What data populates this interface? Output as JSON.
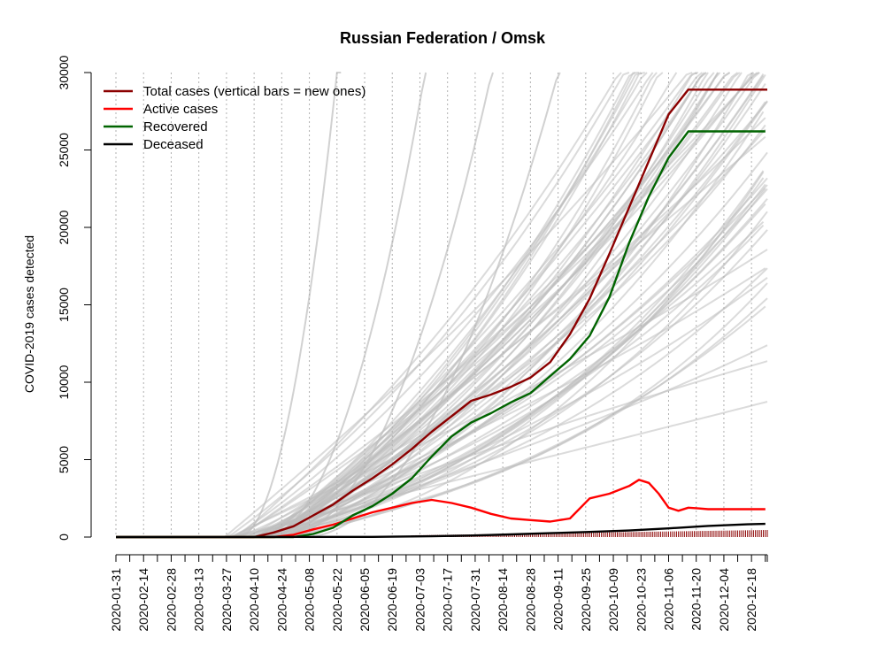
{
  "chart_data": {
    "type": "line",
    "title": "Russian Federation / Omsk",
    "xlabel": "",
    "ylabel": "COVID-2019 cases detected",
    "ylim": [
      0,
      30000
    ],
    "yticks": [
      0,
      5000,
      10000,
      15000,
      20000,
      25000,
      30000
    ],
    "xrange": [
      "2020-01-31",
      "2020-12-26"
    ],
    "xtick_labels": [
      "2020-01-31",
      "2020-02-14",
      "2020-02-28",
      "2020-03-13",
      "2020-03-27",
      "2020-04-10",
      "2020-04-24",
      "2020-05-08",
      "2020-05-22",
      "2020-06-05",
      "2020-06-19",
      "2020-07-03",
      "2020-07-17",
      "2020-07-31",
      "2020-08-14",
      "2020-08-28",
      "2020-09-11",
      "2020-09-25",
      "2020-10-09",
      "2020-10-23",
      "2020-11-06",
      "2020-11-20",
      "2020-12-04",
      "2020-12-18"
    ],
    "legend": {
      "position": "top-left",
      "entries": [
        {
          "label": "Total cases (vertical bars = new ones)",
          "color": "#8b0000"
        },
        {
          "label": "Active cases",
          "color": "#ff0000"
        },
        {
          "label": "Recovered",
          "color": "#006400"
        },
        {
          "label": "Deceased",
          "color": "#000000"
        }
      ]
    },
    "background_series_color": "#bdbdbd",
    "series": [
      {
        "name": "Total cases",
        "color": "#8b0000",
        "x_days": [
          0,
          70,
          80,
          90,
          100,
          110,
          120,
          130,
          140,
          150,
          160,
          170,
          180,
          190,
          200,
          210,
          220,
          230,
          240,
          250,
          260,
          270,
          280,
          290,
          300,
          310,
          320,
          330
        ],
        "values": [
          0,
          0,
          300,
          700,
          1400,
          2100,
          3000,
          3800,
          4700,
          5700,
          6800,
          7800,
          8800,
          9200,
          9700,
          10300,
          11300,
          13100,
          15400,
          18300,
          21300,
          24300,
          27300,
          28900,
          28900,
          28900,
          28900,
          28900
        ]
      },
      {
        "name": "Active cases",
        "color": "#ff0000",
        "x_days": [
          0,
          80,
          90,
          100,
          110,
          120,
          130,
          140,
          150,
          160,
          170,
          180,
          190,
          200,
          210,
          220,
          230,
          240,
          250,
          260,
          265,
          270,
          275,
          280,
          285,
          290,
          295,
          300,
          305,
          310,
          319,
          329
        ],
        "values": [
          0,
          0,
          150,
          500,
          800,
          1200,
          1600,
          1900,
          2200,
          2400,
          2200,
          1900,
          1500,
          1200,
          1100,
          1000,
          1200,
          2500,
          2800,
          3300,
          3700,
          3500,
          2800,
          1900,
          1700,
          1900,
          1850,
          1800,
          1800,
          1800,
          1800,
          1800
        ]
      },
      {
        "name": "Recovered",
        "color": "#006400",
        "x_days": [
          0,
          90,
          100,
          110,
          120,
          130,
          140,
          150,
          160,
          170,
          180,
          190,
          200,
          210,
          220,
          230,
          240,
          250,
          260,
          270,
          280,
          290,
          300,
          310,
          320,
          329
        ],
        "values": [
          0,
          0,
          200,
          600,
          1400,
          2000,
          2800,
          3800,
          5200,
          6500,
          7400,
          8000,
          8700,
          9300,
          10400,
          11500,
          13000,
          15500,
          19000,
          22000,
          24500,
          26200,
          26200,
          26200,
          26200,
          26200
        ]
      },
      {
        "name": "Deceased",
        "color": "#000000",
        "x_days": [
          0,
          130,
          160,
          180,
          200,
          220,
          240,
          260,
          280,
          300,
          320,
          329
        ],
        "values": [
          0,
          10,
          50,
          100,
          170,
          250,
          330,
          420,
          560,
          720,
          820,
          850
        ]
      }
    ]
  }
}
